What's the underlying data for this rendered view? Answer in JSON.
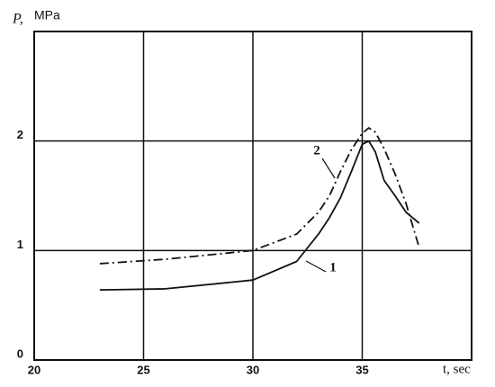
{
  "chart_data": {
    "type": "line",
    "y_label": "P,",
    "y_unit": "MPa",
    "x_label": "t, sec",
    "xlim": [
      20,
      40
    ],
    "ylim": [
      0,
      3
    ],
    "xticks": [
      20,
      25,
      30,
      35
    ],
    "yticks": [
      0,
      1,
      2
    ],
    "grid": true,
    "x": [
      23,
      26,
      30,
      32,
      33,
      33.5,
      34,
      34.5,
      35,
      35.3,
      35.6,
      36,
      36.5,
      37,
      37.6
    ],
    "series": [
      {
        "name": "1",
        "color": "#111111",
        "dash": "solid",
        "values": [
          0.64,
          0.65,
          0.73,
          0.9,
          1.15,
          1.3,
          1.48,
          1.72,
          1.97,
          2.0,
          1.9,
          1.64,
          1.5,
          1.35,
          1.25
        ]
      },
      {
        "name": "2",
        "color": "#111111",
        "dash": "dashdot",
        "values": [
          0.88,
          0.92,
          1.0,
          1.15,
          1.35,
          1.5,
          1.72,
          1.92,
          2.07,
          2.12,
          2.08,
          1.93,
          1.7,
          1.43,
          1.03
        ]
      }
    ]
  }
}
